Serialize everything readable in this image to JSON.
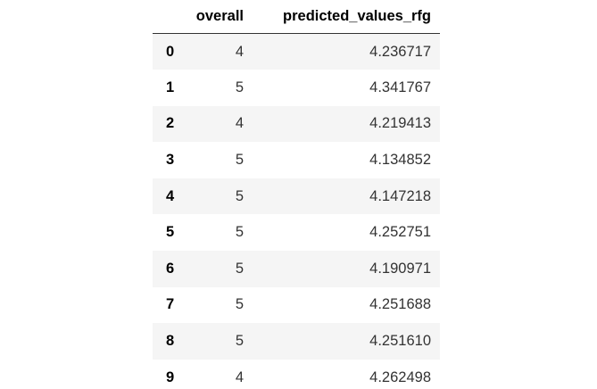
{
  "table": {
    "columns": [
      "",
      "overall",
      "predicted_values_rfg"
    ],
    "rows": [
      {
        "index": "0",
        "overall": "4",
        "predicted_values_rfg": "4.236717"
      },
      {
        "index": "1",
        "overall": "5",
        "predicted_values_rfg": "4.341767"
      },
      {
        "index": "2",
        "overall": "4",
        "predicted_values_rfg": "4.219413"
      },
      {
        "index": "3",
        "overall": "5",
        "predicted_values_rfg": "4.134852"
      },
      {
        "index": "4",
        "overall": "5",
        "predicted_values_rfg": "4.147218"
      },
      {
        "index": "5",
        "overall": "5",
        "predicted_values_rfg": "4.252751"
      },
      {
        "index": "6",
        "overall": "5",
        "predicted_values_rfg": "4.190971"
      },
      {
        "index": "7",
        "overall": "5",
        "predicted_values_rfg": "4.251688"
      },
      {
        "index": "8",
        "overall": "5",
        "predicted_values_rfg": "4.251610"
      },
      {
        "index": "9",
        "overall": "4",
        "predicted_values_rfg": "4.262498"
      }
    ]
  },
  "colors": {
    "stripe": "#f5f5f5",
    "header_rule": "#333333",
    "background": "#ffffff"
  }
}
